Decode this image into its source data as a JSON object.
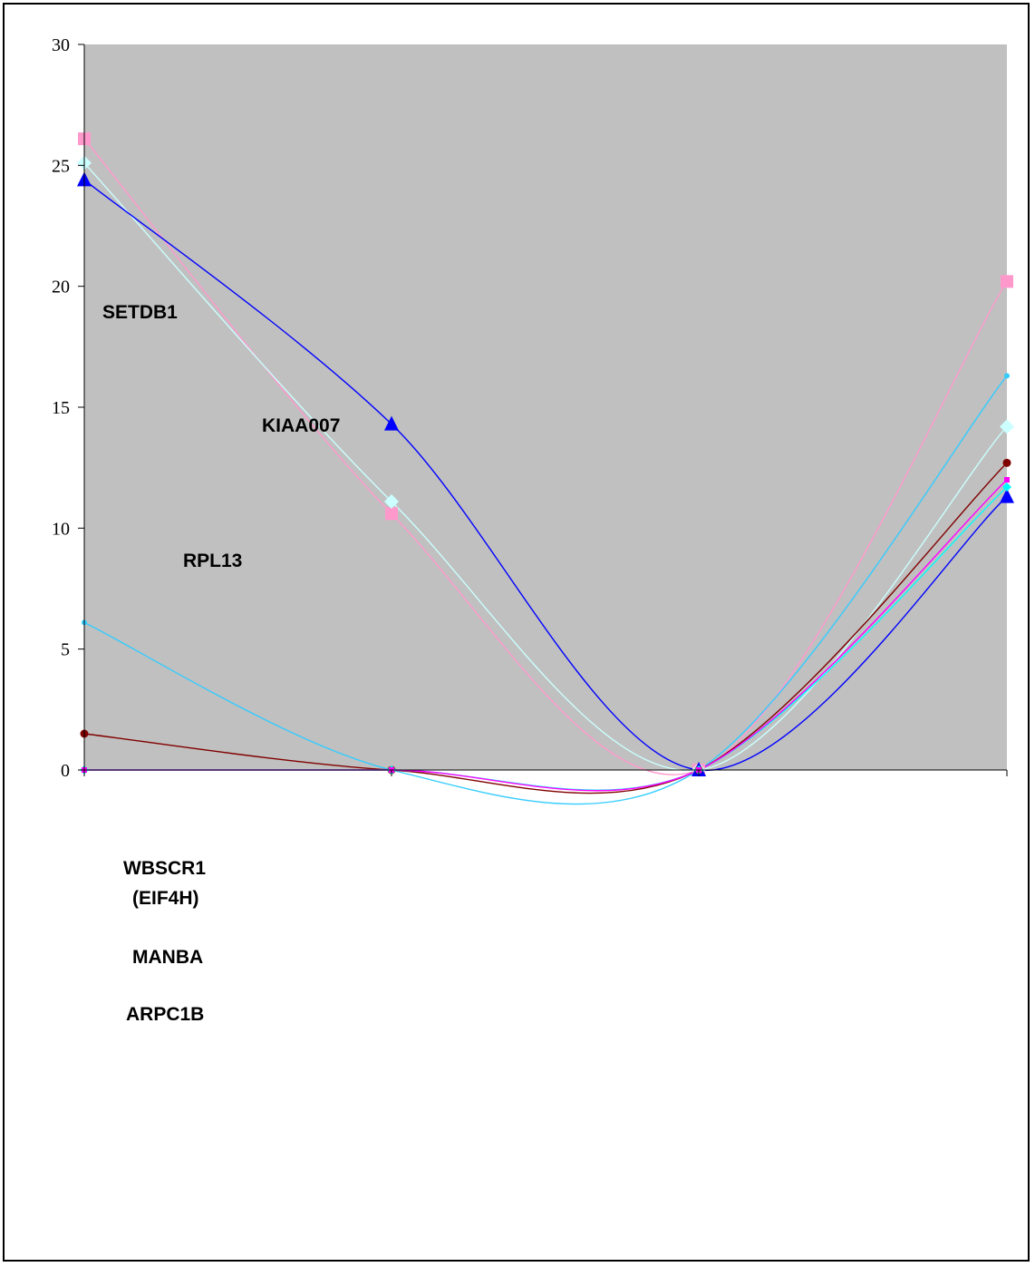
{
  "chart_data": {
    "type": "line",
    "title": "",
    "xlabel": "",
    "ylabel": "",
    "x": [
      1,
      2,
      3,
      4
    ],
    "ylim": [
      0,
      30
    ],
    "yticks": [
      "0",
      "5",
      "10",
      "15",
      "20",
      "25",
      "30"
    ],
    "grid": false,
    "legend": "none",
    "plot_background": "#c0c0c0",
    "series": [
      {
        "name": "RPL13",
        "color": "#ff99cc",
        "marker": "square",
        "values": [
          26.1,
          10.6,
          0,
          20.2
        ]
      },
      {
        "name": "SETDB1",
        "color": "#ccffff",
        "marker": "diamond",
        "values": [
          25.1,
          11.1,
          0,
          14.2
        ]
      },
      {
        "name": "KIAA007",
        "color": "#0000ff",
        "marker": "triangle",
        "values": [
          24.4,
          14.3,
          0,
          11.3
        ]
      },
      {
        "name": "WBSCR1 (EIF4H)",
        "color": "#33ccff",
        "marker": "dot",
        "values": [
          6.1,
          0,
          0,
          16.3
        ]
      },
      {
        "name": "MANBA",
        "color": "#800000",
        "marker": "circle",
        "values": [
          1.5,
          0,
          0,
          12.7
        ]
      },
      {
        "name": "ARPC1B",
        "color": "#00ffff",
        "marker": "diamond-small",
        "values": [
          0,
          0,
          0,
          11.7
        ]
      },
      {
        "name": "",
        "color": "#ff00ff",
        "marker": "square-small",
        "values": [
          0,
          0,
          0,
          12.0
        ]
      }
    ],
    "annotations": [
      "SETDB1",
      "KIAA007",
      "RPL13",
      "WBSCR1",
      "(EIF4H)",
      "MANBA",
      "ARPC1B"
    ]
  }
}
